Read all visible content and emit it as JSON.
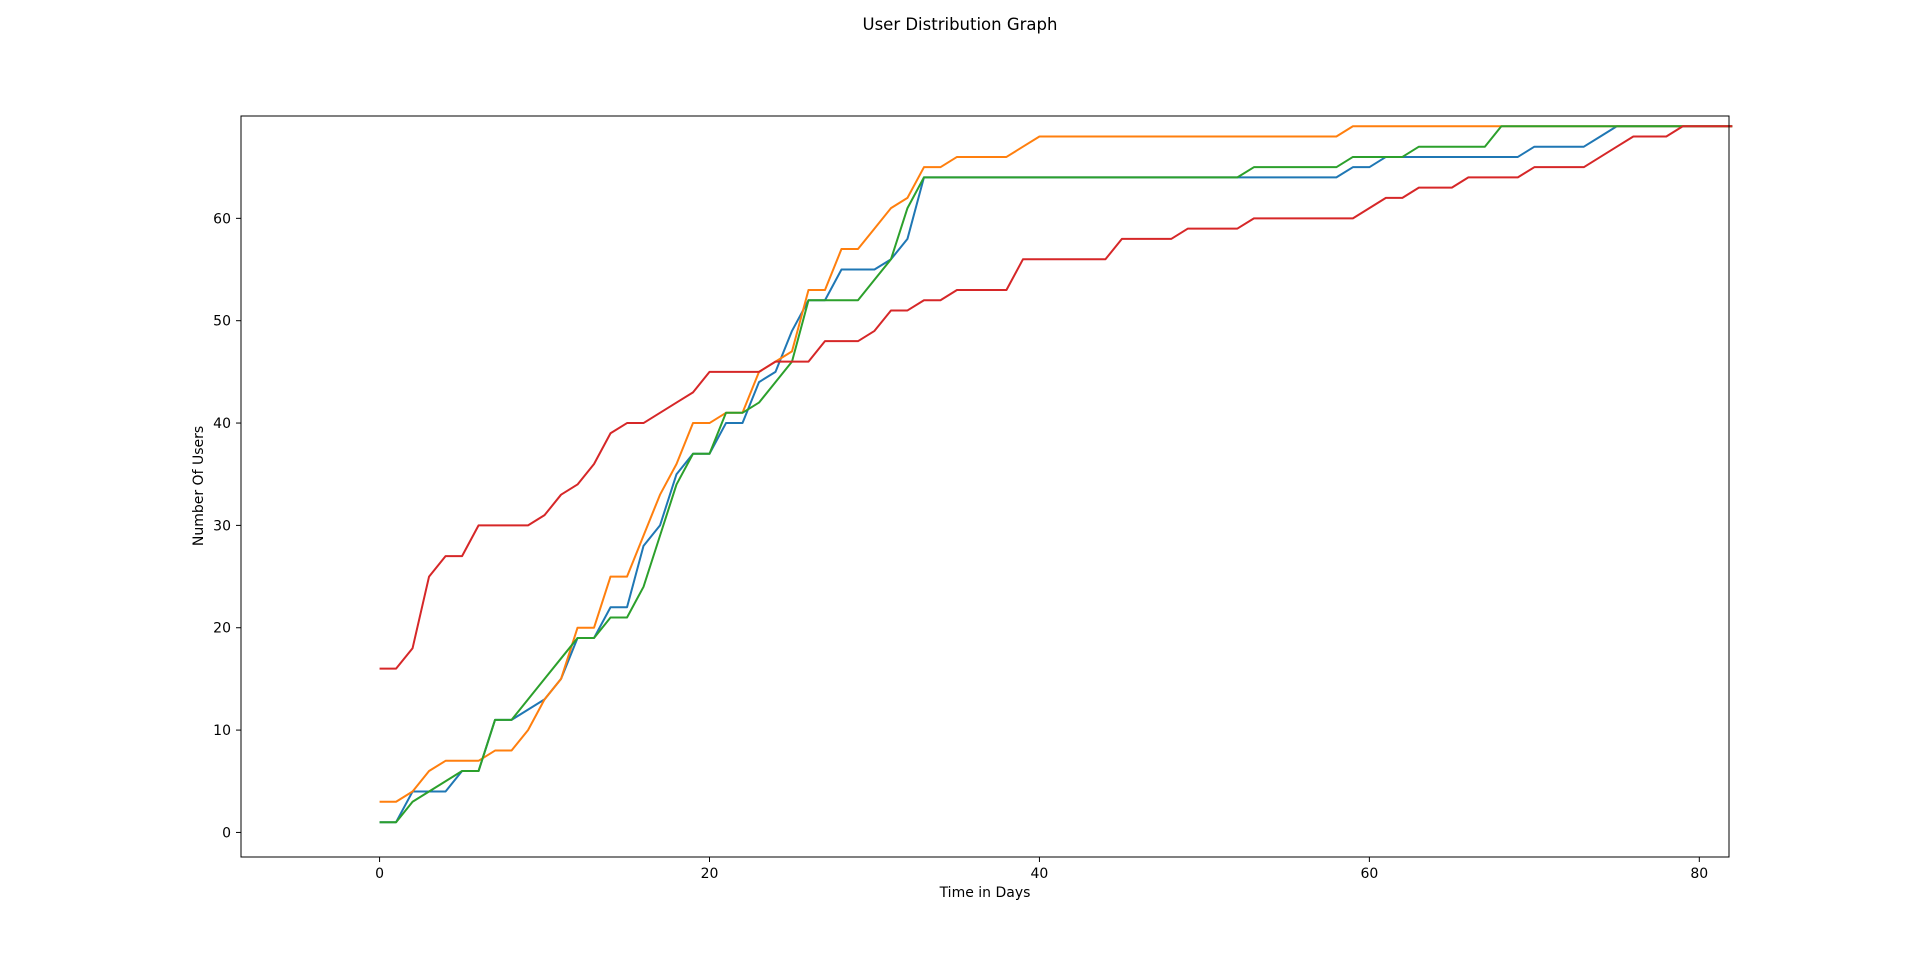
{
  "chart_data": {
    "type": "line",
    "title": "User Distribution Graph",
    "xlabel": "Time in Days",
    "ylabel": "Number Of Users",
    "xlim": [
      -8.4,
      81.8
    ],
    "ylim": [
      -2.4,
      70.0
    ],
    "xticks": [
      0,
      20,
      40,
      60,
      80
    ],
    "yticks": [
      0,
      10,
      20,
      30,
      40,
      50,
      60
    ],
    "grid": false,
    "legend": null,
    "x_start": 0,
    "series": [
      {
        "color": "#1f77b4",
        "values": [
          1,
          1,
          4,
          4,
          4,
          6,
          6,
          11,
          11,
          12,
          13,
          15,
          19,
          19,
          22,
          22,
          28,
          30,
          35,
          37,
          37,
          40,
          40,
          44,
          45,
          49,
          52,
          52,
          55,
          55,
          55,
          56,
          58,
          64,
          64,
          64,
          64,
          64,
          64,
          64,
          64,
          64,
          64,
          64,
          64,
          64,
          64,
          64,
          64,
          64,
          64,
          64,
          64,
          64,
          64,
          64,
          64,
          64,
          64,
          65,
          65,
          66,
          66,
          66,
          66,
          66,
          66,
          66,
          66,
          66,
          67,
          67,
          67,
          67,
          68,
          69,
          69,
          69,
          69,
          69,
          69,
          69,
          69
        ]
      },
      {
        "color": "#ff7f0e",
        "values": [
          3,
          3,
          4,
          6,
          7,
          7,
          7,
          8,
          8,
          10,
          13,
          15,
          20,
          20,
          25,
          25,
          29,
          33,
          36,
          40,
          40,
          41,
          41,
          45,
          46,
          47,
          53,
          53,
          57,
          57,
          59,
          61,
          62,
          65,
          65,
          66,
          66,
          66,
          66,
          67,
          68,
          68,
          68,
          68,
          68,
          68,
          68,
          68,
          68,
          68,
          68,
          68,
          68,
          68,
          68,
          68,
          68,
          68,
          68,
          69,
          69,
          69,
          69,
          69,
          69,
          69,
          69,
          69,
          69,
          69,
          69,
          69,
          69,
          69,
          69,
          69,
          69,
          69,
          69,
          69,
          69,
          69,
          69
        ]
      },
      {
        "color": "#2ca02c",
        "values": [
          1,
          1,
          3,
          4,
          5,
          6,
          6,
          11,
          11,
          13,
          15,
          17,
          19,
          19,
          21,
          21,
          24,
          29,
          34,
          37,
          37,
          41,
          41,
          42,
          44,
          46,
          52,
          52,
          52,
          52,
          54,
          56,
          61,
          64,
          64,
          64,
          64,
          64,
          64,
          64,
          64,
          64,
          64,
          64,
          64,
          64,
          64,
          64,
          64,
          64,
          64,
          64,
          64,
          65,
          65,
          65,
          65,
          65,
          65,
          66,
          66,
          66,
          66,
          67,
          67,
          67,
          67,
          67,
          69,
          69,
          69,
          69,
          69,
          69,
          69,
          69,
          69,
          69,
          69,
          69,
          69,
          69,
          69
        ]
      },
      {
        "color": "#d62728",
        "values": [
          16,
          16,
          18,
          25,
          27,
          27,
          30,
          30,
          30,
          30,
          31,
          33,
          34,
          36,
          39,
          40,
          40,
          41,
          42,
          43,
          45,
          45,
          45,
          45,
          46,
          46,
          46,
          48,
          48,
          48,
          49,
          51,
          51,
          52,
          52,
          53,
          53,
          53,
          53,
          56,
          56,
          56,
          56,
          56,
          56,
          58,
          58,
          58,
          58,
          59,
          59,
          59,
          59,
          60,
          60,
          60,
          60,
          60,
          60,
          60,
          61,
          62,
          62,
          63,
          63,
          63,
          64,
          64,
          64,
          64,
          65,
          65,
          65,
          65,
          66,
          67,
          68,
          68,
          68,
          69,
          69,
          69,
          69
        ]
      }
    ]
  }
}
